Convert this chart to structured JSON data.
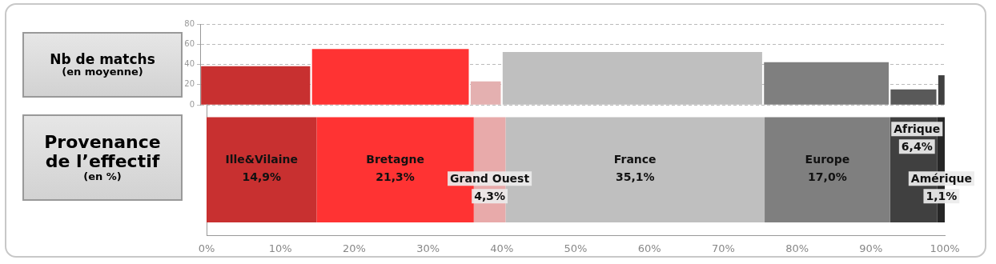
{
  "chart_data": [
    {
      "type": "bar",
      "ylabel": "Nb de matchs\n(en moyenne)",
      "x": [
        7.45,
        25.55,
        38.35,
        58.05,
        84.1,
        95.8,
        99.55
      ],
      "xlim": [
        0,
        100
      ],
      "values": [
        38,
        55,
        23,
        52,
        42,
        15,
        29
      ],
      "colors": [
        "#c83030",
        "#ff3333",
        "#e4b0b0",
        "#bfbfbf",
        "#7f7f7f",
        "#595959",
        "#404040"
      ],
      "ylim": [
        0,
        80
      ],
      "yticks": [
        0,
        20,
        40,
        60,
        80
      ],
      "grid": "y",
      "tick_labels": "y"
    },
    {
      "type": "bar",
      "orientation": "horizontal",
      "stacked": true,
      "ylabel": "Provenance\nde l’effectif\n(en %)",
      "categories": [
        null
      ],
      "series": [
        {
          "name": "Ille&Vilaine",
          "color": "#c83030",
          "values": [
            14.9
          ],
          "value_labels": [
            "14,9%"
          ]
        },
        {
          "name": "Bretagne",
          "color": "#ff3333",
          "values": [
            21.3
          ],
          "value_labels": [
            "21,3%"
          ]
        },
        {
          "name": "Grand Ouest",
          "color": "#e8aaaa",
          "values": [
            4.3
          ],
          "value_labels": [
            "4,3%"
          ]
        },
        {
          "name": "France",
          "color": "#bfbfbf",
          "values": [
            35.1
          ],
          "value_labels": [
            "35,1%"
          ]
        },
        {
          "name": "Europe",
          "color": "#7f7f7f",
          "values": [
            17.0
          ],
          "value_labels": [
            "17,0%"
          ]
        },
        {
          "name": "Afrique",
          "color": "#404040",
          "values": [
            6.4
          ],
          "value_labels": [
            "6,4%"
          ]
        },
        {
          "name": "Amérique",
          "color": "#262626",
          "values": [
            1.1
          ],
          "value_labels": [
            "1,1%"
          ]
        }
      ],
      "xlim": [
        0,
        100
      ],
      "xticks": [
        {
          "value": 0,
          "label": "0%"
        },
        {
          "value": 10,
          "label": "10%"
        },
        {
          "value": 20,
          "label": "20%"
        },
        {
          "value": 30,
          "label": "30%"
        },
        {
          "value": 40,
          "label": "40%"
        },
        {
          "value": 50,
          "label": "50%"
        },
        {
          "value": 60,
          "label": "60%"
        },
        {
          "value": 70,
          "label": "70%"
        },
        {
          "value": 80,
          "label": "80%"
        },
        {
          "value": 90,
          "label": "90%"
        },
        {
          "value": 100,
          "label": "100%"
        }
      ],
      "tick_labels": "x"
    }
  ]
}
